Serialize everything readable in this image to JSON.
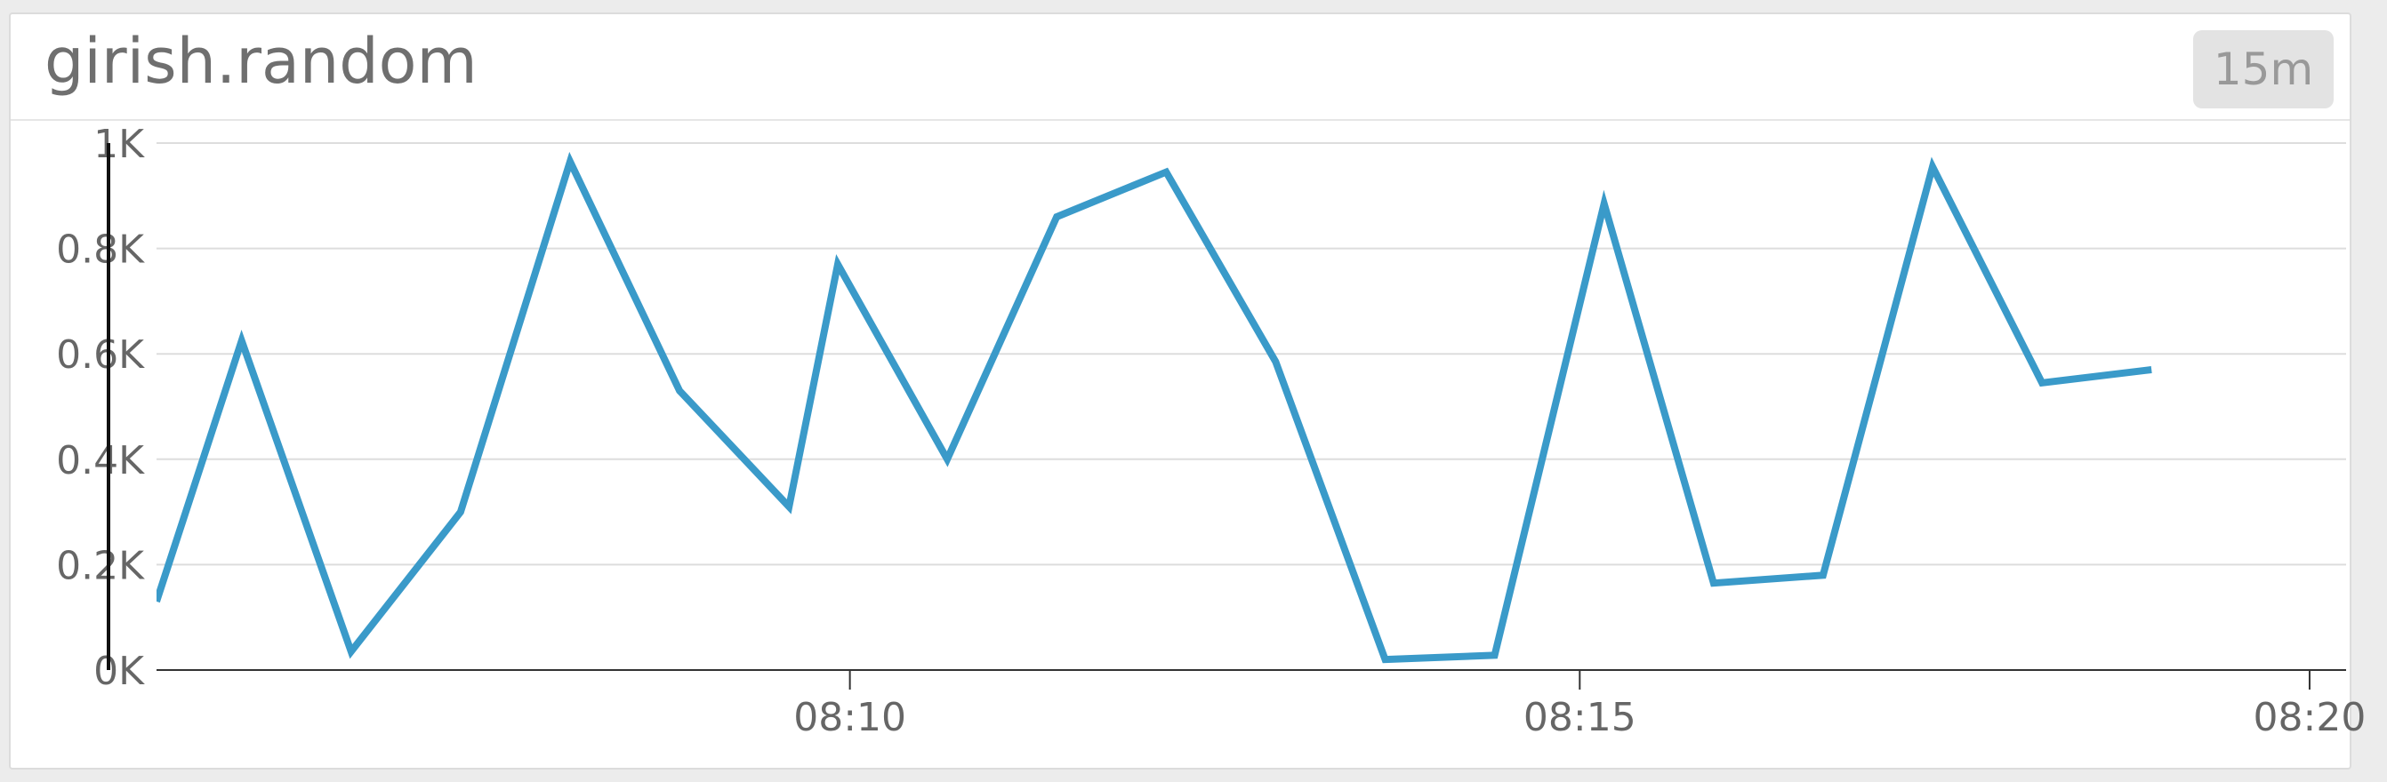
{
  "widget": {
    "title": "girish.random",
    "time_range": "15m"
  },
  "colors": {
    "series": "#3a9ac9",
    "grid": "#dddddd",
    "axis": "#333333",
    "text": "#666666"
  },
  "chart_data": {
    "type": "line",
    "title": "girish.random",
    "xlabel": "",
    "ylabel": "",
    "ylim": [
      0,
      1000
    ],
    "y_ticks": [
      {
        "value": 0,
        "label": "0K"
      },
      {
        "value": 200,
        "label": "0.2K"
      },
      {
        "value": 400,
        "label": "0.4K"
      },
      {
        "value": 600,
        "label": "0.6K"
      },
      {
        "value": 800,
        "label": "0.8K"
      },
      {
        "value": 1000,
        "label": "1K"
      }
    ],
    "x_ticks": [
      {
        "time": "08:10",
        "label": "08:10"
      },
      {
        "time": "08:15",
        "label": "08:15"
      },
      {
        "time": "08:20",
        "label": "08:20"
      }
    ],
    "xlim": [
      "08:05:15",
      "08:20:15"
    ],
    "grid": true,
    "legend": "none",
    "series": [
      {
        "x": [
          "08:05:15",
          "08:05:50",
          "08:06:35",
          "08:07:20",
          "08:08:05",
          "08:08:50",
          "08:09:35",
          "08:09:55",
          "08:10:40",
          "08:11:25",
          "08:12:10",
          "08:12:55",
          "08:13:40",
          "08:14:25",
          "08:15:10",
          "08:15:55",
          "08:16:40",
          "08:17:25",
          "08:18:10",
          "08:18:55"
        ],
        "values": [
          130,
          625,
          35,
          300,
          965,
          530,
          310,
          770,
          400,
          860,
          945,
          585,
          20,
          28,
          885,
          165,
          180,
          955,
          545,
          570
        ]
      }
    ]
  }
}
